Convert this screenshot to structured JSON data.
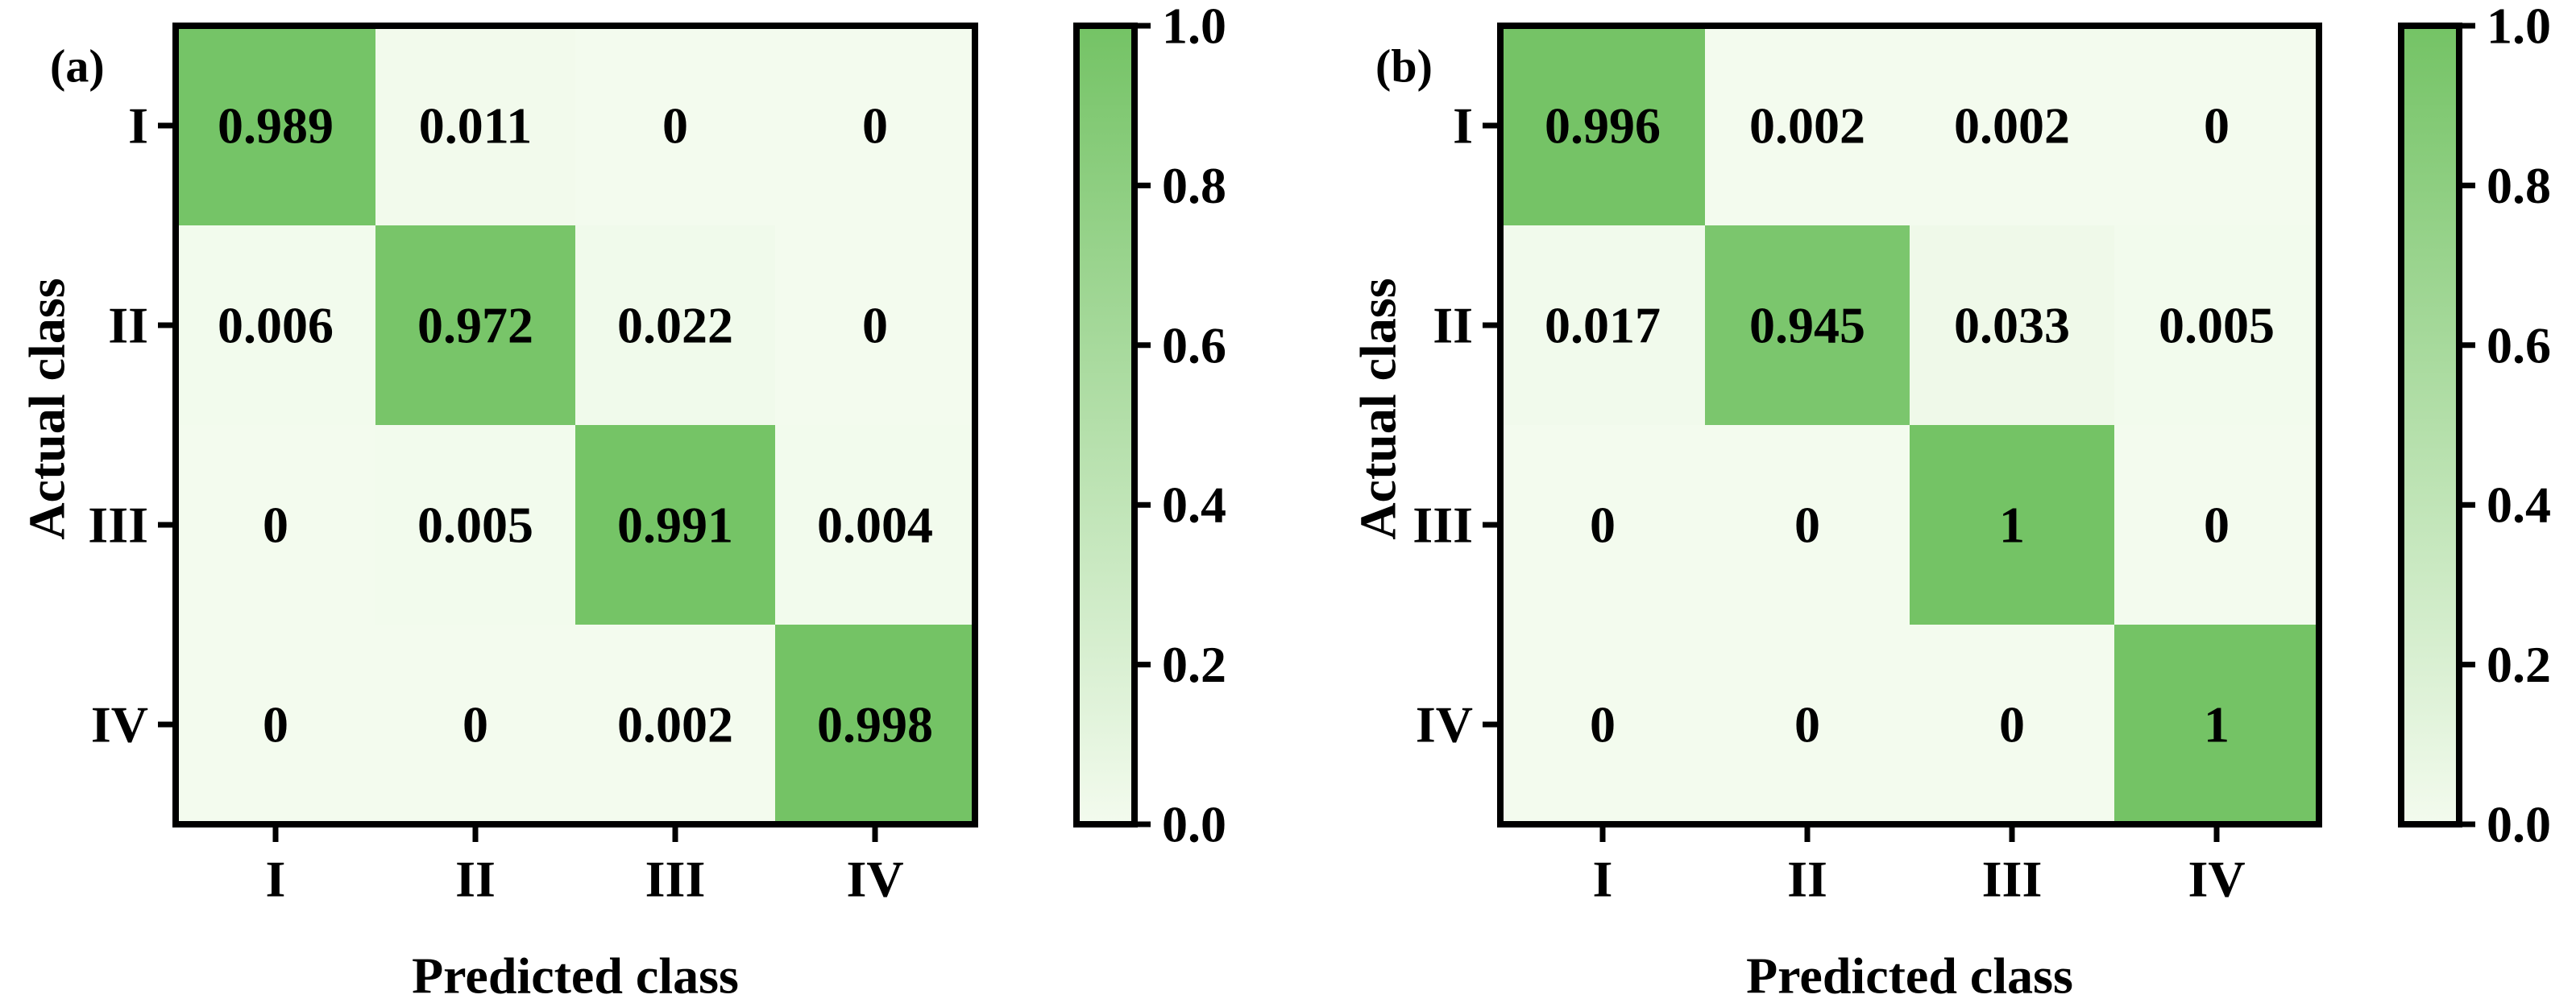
{
  "chart_data": [
    {
      "type": "heatmap",
      "panel_label": "(a)",
      "xlabel": "Predicted class",
      "ylabel": "Actual class",
      "x_categories": [
        "I",
        "II",
        "III",
        "IV"
      ],
      "y_categories": [
        "I",
        "II",
        "III",
        "IV"
      ],
      "cell_labels": [
        [
          "0.989",
          "0.011",
          "0",
          "0"
        ],
        [
          "0.006",
          "0.972",
          "0.022",
          "0"
        ],
        [
          "0",
          "0.005",
          "0.991",
          "0.004"
        ],
        [
          "0",
          "0",
          "0.002",
          "0.998"
        ]
      ],
      "values": [
        [
          0.989,
          0.011,
          0,
          0
        ],
        [
          0.006,
          0.972,
          0.022,
          0
        ],
        [
          0,
          0.005,
          0.991,
          0.004
        ],
        [
          0,
          0,
          0.002,
          0.998
        ]
      ],
      "colorbar": {
        "range": [
          0,
          1
        ],
        "ticks": [
          "0.0",
          "0.2",
          "0.4",
          "0.6",
          "0.8",
          "1.0"
        ]
      }
    },
    {
      "type": "heatmap",
      "panel_label": "(b)",
      "xlabel": "Predicted class",
      "ylabel": "Actual class",
      "x_categories": [
        "I",
        "II",
        "III",
        "IV"
      ],
      "y_categories": [
        "I",
        "II",
        "III",
        "IV"
      ],
      "cell_labels": [
        [
          "0.996",
          "0.002",
          "0.002",
          "0"
        ],
        [
          "0.017",
          "0.945",
          "0.033",
          "0.005"
        ],
        [
          "0",
          "0",
          "1",
          "0"
        ],
        [
          "0",
          "0",
          "0",
          "1"
        ]
      ],
      "values": [
        [
          0.996,
          0.002,
          0.002,
          0
        ],
        [
          0.017,
          0.945,
          0.033,
          0.005
        ],
        [
          0,
          0,
          1,
          0
        ],
        [
          0,
          0,
          0,
          1
        ]
      ],
      "colorbar": {
        "range": [
          0,
          1
        ],
        "ticks": [
          "0.0",
          "0.2",
          "0.4",
          "0.6",
          "0.8",
          "1.0"
        ]
      }
    }
  ],
  "colors": {
    "low": "#f3fbee",
    "high": "#74c365",
    "text": "#000000",
    "frame": "#000000"
  }
}
